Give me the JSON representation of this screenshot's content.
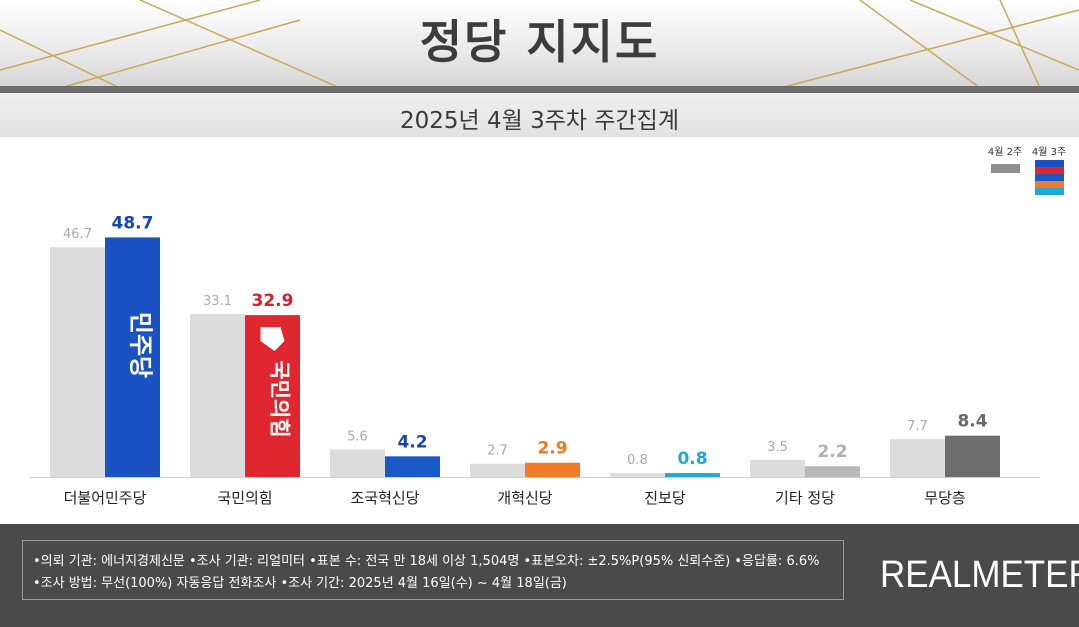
{
  "header": {
    "title": "정당 지지도",
    "subtitle": "2025년 4월 3주차 주간집계"
  },
  "chart_data": {
    "type": "bar",
    "title": "정당 지지도",
    "subtitle": "2025년 4월 3주차 주간집계",
    "categories": [
      "더불어민주당",
      "국민의힘",
      "조국혁신당",
      "개혁신당",
      "진보당",
      "기타 정당",
      "무당층"
    ],
    "series": [
      {
        "name": "4월 2주",
        "values": [
          46.7,
          33.1,
          5.6,
          2.7,
          0.8,
          3.5,
          7.7
        ]
      },
      {
        "name": "4월 3주",
        "values": [
          48.7,
          32.9,
          4.2,
          2.9,
          0.8,
          2.2,
          8.4
        ]
      }
    ],
    "value_labels_prev": [
      "46.7",
      "33.1",
      "5.6",
      "2.7",
      "0.8",
      "3.5",
      "7.7"
    ],
    "value_labels_curr": [
      "48.7",
      "32.9",
      "4.2",
      "2.9",
      "0.8",
      "2.2",
      "8.4"
    ],
    "ylim": [
      0,
      50
    ],
    "legend": {
      "placement": "top-right",
      "prev_label": "4월 2주",
      "curr_label": "4월 3주"
    },
    "colors": {
      "prev": "#dcdcdc",
      "curr": [
        "#1a52c4",
        "#e0262e",
        "#1a5ac8",
        "#f07c2a",
        "#1ea8d8",
        "#b8b8b8",
        "#6e6e6e"
      ],
      "curr_label": [
        "#1446b0",
        "#d81e28",
        "#1446b0",
        "#ee7a22",
        "#1ea8d8",
        "#b0b0b0",
        "#6a6a6a"
      ],
      "prev_label": "#aaaaaa",
      "legend_curr_stripes": [
        "#1a52c4",
        "#e0262e",
        "#1a5ac8",
        "#f07c2a",
        "#1ea8d8"
      ]
    },
    "bar_logos": {
      "democratic": "민주당",
      "ppp": "국민의힘"
    }
  },
  "footer": {
    "line1": "•의뢰 기관: 에너지경제신문  •조사 기관: 리얼미터 •표본 수: 전국 만 18세 이상 1,504명 •표본오차: ±2.5%P(95% 신뢰수준) •응답률: 6.6%",
    "line2": "•조사 방법: 무선(100%) 자동응답 전화조사 •조사 기간: 2025년 4월 16일(수) ~ 4월 18일(금)",
    "brand": "REALMETER"
  }
}
